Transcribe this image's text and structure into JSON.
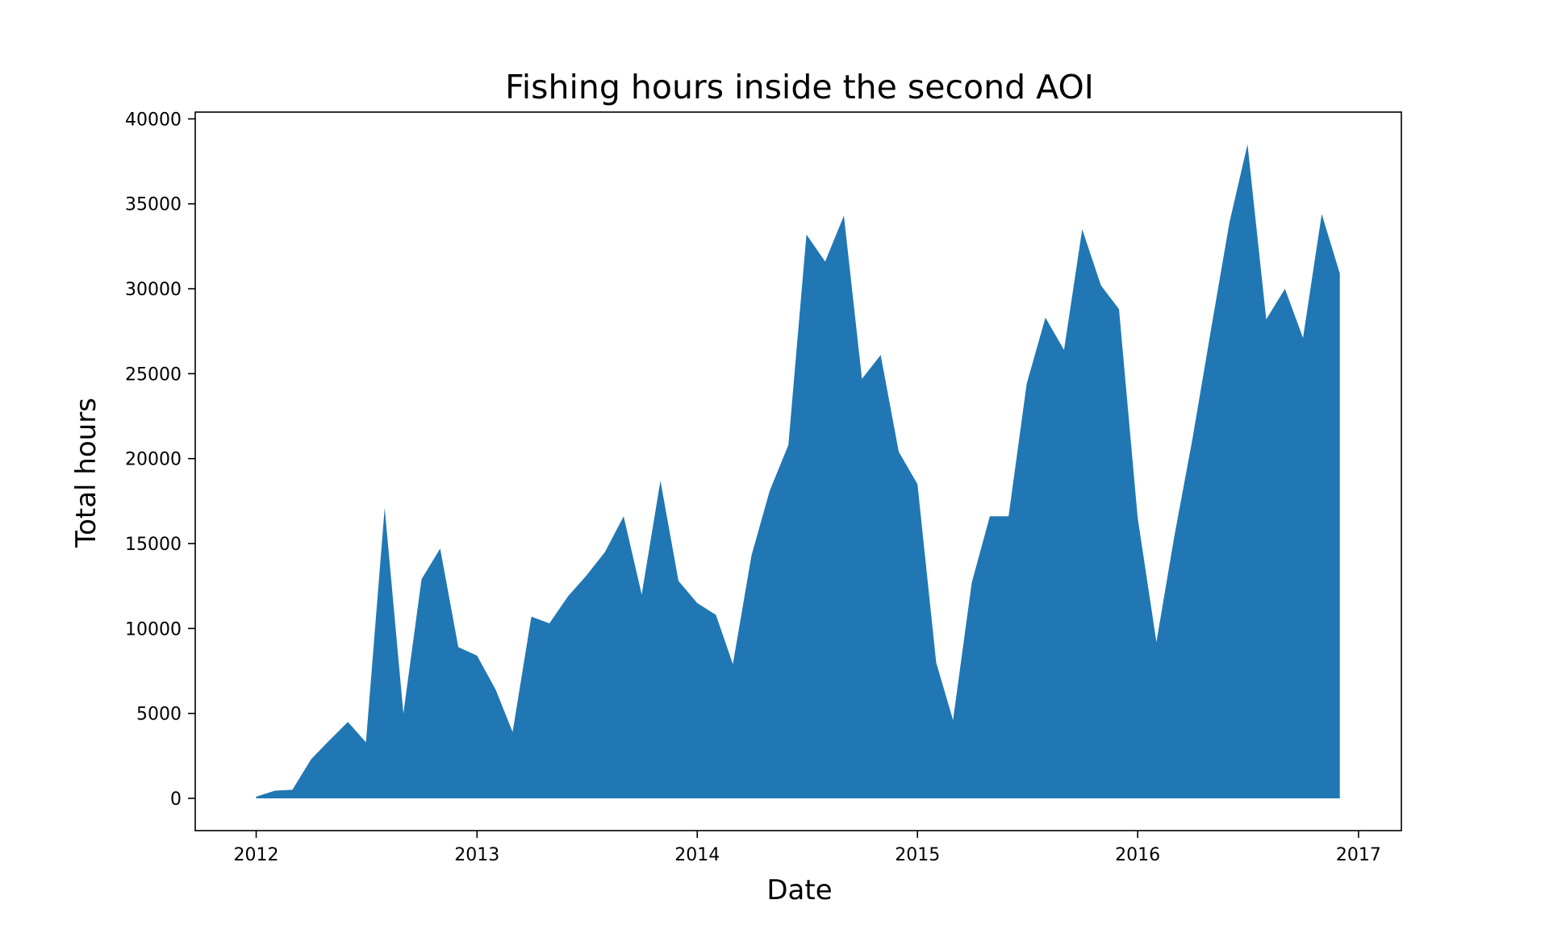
{
  "chart_data": {
    "type": "area",
    "title": "Fishing hours inside the second AOI",
    "xlabel": "Date",
    "ylabel": "Total hours",
    "xlim": [
      "2011-09-22",
      "2017-03-13"
    ],
    "ylim": [
      -1900,
      40400
    ],
    "x_ticks": [
      "2012",
      "2013",
      "2014",
      "2015",
      "2016",
      "2017"
    ],
    "y_ticks": [
      0,
      5000,
      10000,
      15000,
      20000,
      25000,
      30000,
      35000,
      40000
    ],
    "grid": false,
    "color": "#2077b4",
    "series": [
      {
        "x": [
          "2012-01-01",
          "2012-02-01",
          "2012-03-01",
          "2012-04-01",
          "2012-05-01",
          "2012-06-01",
          "2012-07-01",
          "2012-08-01",
          "2012-09-01",
          "2012-10-01",
          "2012-11-01",
          "2012-12-01",
          "2013-01-01",
          "2013-02-01",
          "2013-03-01",
          "2013-04-01",
          "2013-05-01",
          "2013-06-01",
          "2013-07-01",
          "2013-08-01",
          "2013-09-01",
          "2013-10-01",
          "2013-11-01",
          "2013-12-01",
          "2014-01-01",
          "2014-02-01",
          "2014-03-01",
          "2014-04-01",
          "2014-05-01",
          "2014-06-01",
          "2014-07-01",
          "2014-08-01",
          "2014-09-01",
          "2014-10-01",
          "2014-11-01",
          "2014-12-01",
          "2015-01-01",
          "2015-02-01",
          "2015-03-01",
          "2015-04-01",
          "2015-05-01",
          "2015-06-01",
          "2015-07-01",
          "2015-08-01",
          "2015-09-01",
          "2015-10-01",
          "2015-11-01",
          "2015-12-01",
          "2016-01-01",
          "2016-02-01",
          "2016-03-01",
          "2016-04-01",
          "2016-05-01",
          "2016-06-01",
          "2016-07-01",
          "2016-08-01",
          "2016-09-01",
          "2016-10-01",
          "2016-11-01",
          "2016-12-01"
        ],
        "y": [
          100,
          450,
          500,
          2300,
          3400,
          4500,
          3300,
          17100,
          5000,
          12900,
          14700,
          8900,
          8400,
          6400,
          3900,
          10700,
          10300,
          11900,
          13100,
          14500,
          16600,
          12000,
          18700,
          12800,
          11500,
          10800,
          7900,
          14300,
          18100,
          20800,
          33200,
          31600,
          34300,
          24700,
          26100,
          20400,
          18500,
          8000,
          4600,
          12700,
          16600,
          16600,
          24400,
          28300,
          26400,
          33500,
          30200,
          28800,
          16500,
          9200,
          15300,
          21200,
          27500,
          33900,
          38500,
          28200,
          30000,
          27100,
          34400,
          30900
        ]
      }
    ]
  }
}
